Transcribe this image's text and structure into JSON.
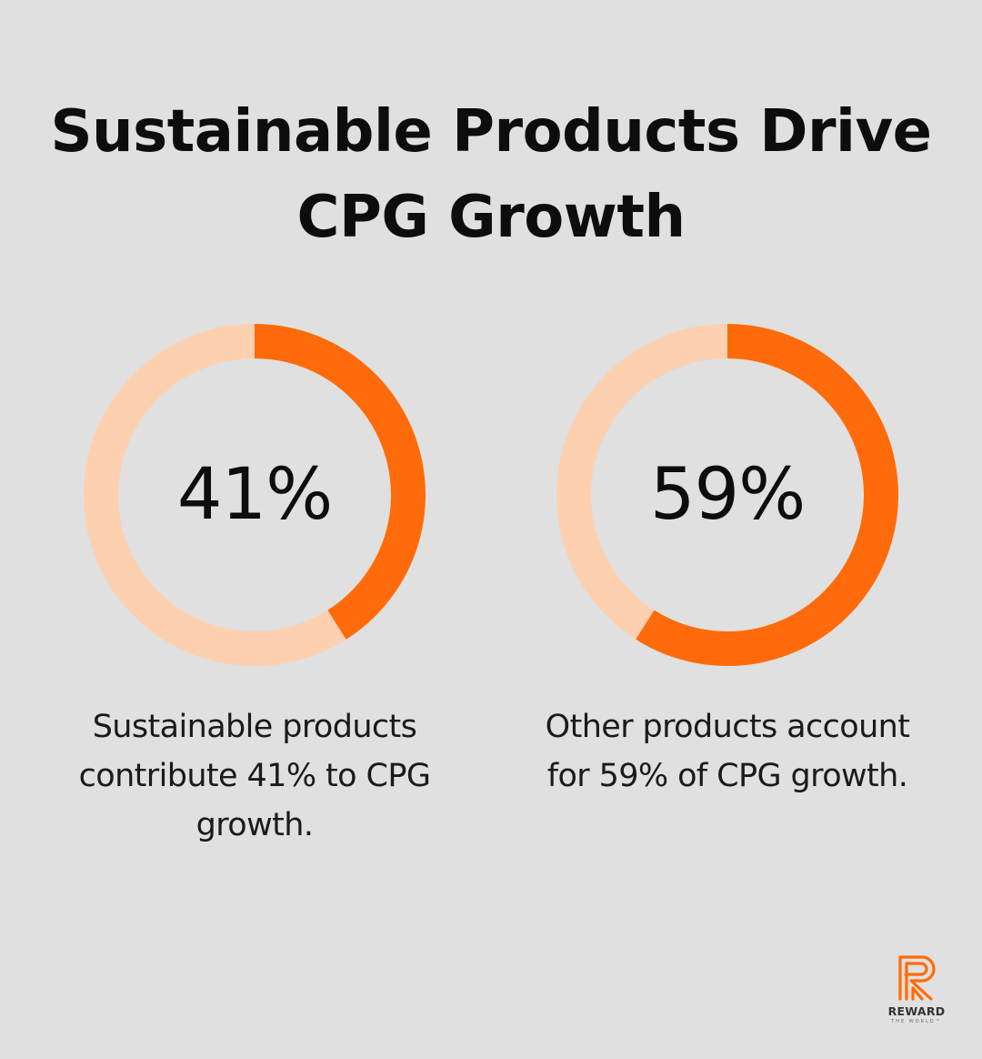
{
  "title": "Sustainable Products Drive CPG Growth",
  "colors": {
    "background": "#dfe0df",
    "accent": "#ff6b0a",
    "track": "#fdd0b0"
  },
  "chart_data": [
    {
      "type": "pie",
      "value": 41,
      "max": 100,
      "value_label": "41%",
      "caption": "Sustainable products contribute 41% to CPG growth."
    },
    {
      "type": "pie",
      "value": 59,
      "max": 100,
      "value_label": "59%",
      "caption": "Other products account for 59% of CPG growth."
    }
  ],
  "logo": {
    "icon": "r-logo-icon",
    "word": "REWARD",
    "sub": "THE WORLD™"
  }
}
